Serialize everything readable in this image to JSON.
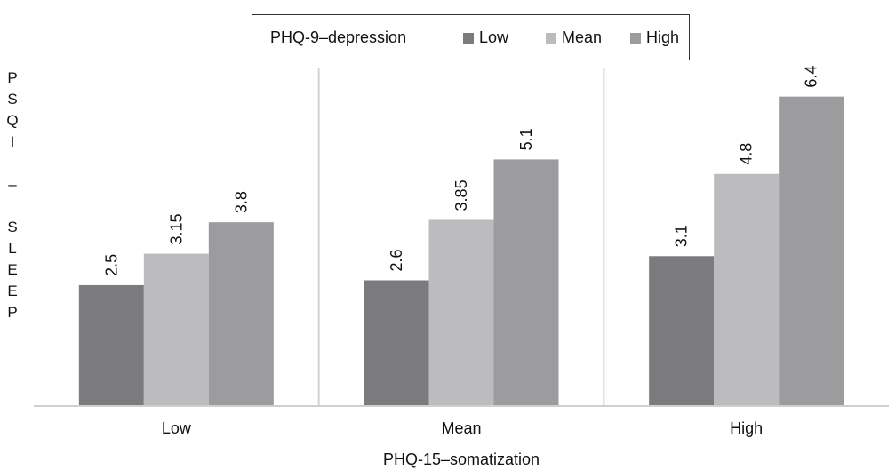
{
  "chart_data": {
    "type": "bar",
    "title": "",
    "xlabel": "PHQ-15–somatization",
    "ylabel_letters": [
      "P",
      "S",
      "Q",
      "I",
      "",
      "–",
      "",
      "S",
      "L",
      "E",
      "E",
      "P"
    ],
    "legend": {
      "title": "PHQ-9–depression",
      "placement": "top-center"
    },
    "categories": [
      "Low",
      "Mean",
      "High"
    ],
    "series": [
      {
        "name": "Low",
        "values": [
          2.5,
          2.6,
          3.1
        ],
        "labels": [
          "2.5",
          "2.6",
          "3.1"
        ],
        "color": "#7b7b7d"
      },
      {
        "name": "Mean",
        "values": [
          3.15,
          3.85,
          4.8
        ],
        "labels": [
          "3.15",
          "3.85",
          "4.8"
        ],
        "color": "#bcbcbe"
      },
      {
        "name": "High",
        "values": [
          3.8,
          5.1,
          6.4
        ],
        "labels": [
          "3.8",
          "5.1",
          "6.4"
        ],
        "color": "#9c9c9e"
      }
    ],
    "ylim": [
      0,
      7
    ],
    "grid": false
  }
}
